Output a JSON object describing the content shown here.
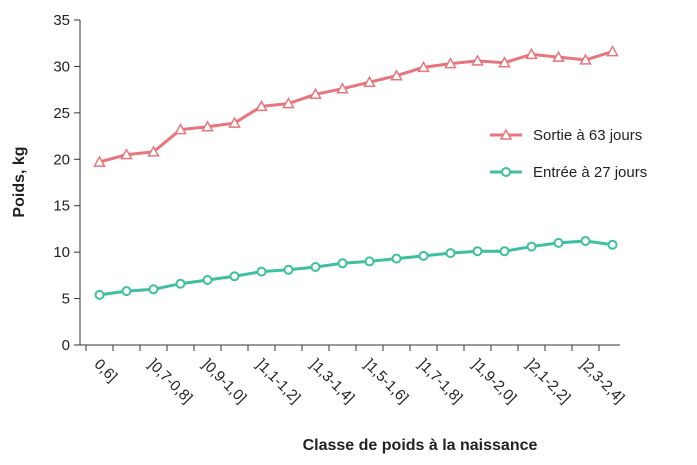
{
  "chart_data": {
    "type": "line",
    "x_label": "Classe de poids à la naissance",
    "y_label": "Poids, kg",
    "categories": [
      "0,6]",
      null,
      "]0,7-0,8]",
      null,
      "]0,9-1,0]",
      null,
      "]1,1-1,2]",
      null,
      "]1,3-1,4]",
      null,
      "]1,5-1,6]",
      null,
      "]1,7-1,8]",
      null,
      "]1,9-2,0]",
      null,
      "]2,1-2,2]",
      null,
      "]2,3-2,4]",
      null
    ],
    "series": [
      {
        "name": "Sortie à 63 jours",
        "color": "#e8747c",
        "marker": "triangle",
        "values": [
          19.7,
          20.5,
          20.8,
          23.2,
          23.5,
          23.9,
          25.7,
          26.0,
          27.0,
          27.6,
          28.3,
          29.0,
          29.9,
          30.3,
          30.6,
          30.4,
          31.3,
          31.0,
          30.7,
          31.6
        ]
      },
      {
        "name": "Entrée à 27 jours",
        "color": "#3dbfa0",
        "marker": "circle",
        "values": [
          5.4,
          5.8,
          6.0,
          6.6,
          7.0,
          7.4,
          7.9,
          8.1,
          8.4,
          8.8,
          9.0,
          9.3,
          9.6,
          9.9,
          10.1,
          10.1,
          10.6,
          11.0,
          11.2,
          10.8
        ]
      }
    ],
    "ylim": [
      0,
      35
    ],
    "yticks": [
      0,
      5,
      10,
      15,
      20,
      25,
      30,
      35
    ],
    "legend": "right"
  }
}
